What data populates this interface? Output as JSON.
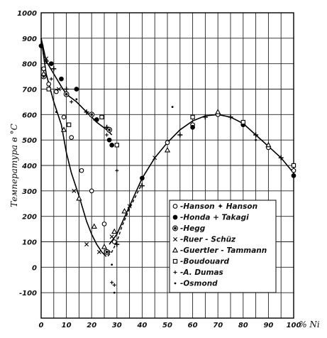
{
  "chart_data": {
    "type": "scatter",
    "title": "",
    "xlabel": "% Ni",
    "ylabel": "Температура в °C",
    "xlim": [
      0,
      100
    ],
    "ylim": [
      -200,
      1000
    ],
    "x_ticks": [
      0,
      10,
      20,
      30,
      40,
      50,
      60,
      70,
      80,
      90,
      100
    ],
    "x_tick_labels": [
      "0",
      "10",
      "20",
      "30",
      "40",
      "50",
      "60",
      "70",
      "80",
      "90",
      "100"
    ],
    "y_ticks": [
      -100,
      0,
      100,
      200,
      300,
      400,
      500,
      600,
      700,
      800,
      900,
      1000
    ],
    "y_tick_labels": [
      "-100",
      "0",
      "100",
      "200",
      "300",
      "400",
      "500",
      "600",
      "700",
      "800",
      "900",
      "1000"
    ],
    "grid": true,
    "legend_position": "center-right",
    "curves": [
      {
        "style": "solid",
        "x": [
          0,
          2,
          5,
          8,
          10,
          14,
          18,
          22,
          26,
          28
        ],
        "y": [
          900,
          810,
          760,
          710,
          680,
          650,
          610,
          570,
          540,
          520
        ]
      },
      {
        "style": "solid",
        "x": [
          0,
          2,
          5,
          8,
          10,
          12,
          15,
          18,
          20,
          22,
          24,
          25
        ],
        "y": [
          900,
          760,
          650,
          560,
          450,
          370,
          280,
          180,
          130,
          90,
          60,
          50
        ]
      },
      {
        "style": "dashed",
        "x": [
          25,
          26,
          28,
          30,
          32,
          35,
          38,
          40
        ],
        "y": [
          50,
          40,
          60,
          100,
          160,
          230,
          290,
          330
        ]
      },
      {
        "style": "solid",
        "x": [
          27,
          30,
          35,
          40,
          45,
          50,
          55,
          60,
          65,
          70,
          75,
          80,
          85,
          90,
          95,
          100
        ],
        "y": [
          90,
          130,
          240,
          350,
          430,
          490,
          540,
          575,
          595,
          600,
          590,
          565,
          520,
          475,
          430,
          370
        ]
      }
    ],
    "series": [
      {
        "name": "Hanson",
        "marker": "open-circle",
        "points": [
          [
            1,
            780
          ],
          [
            3,
            720
          ],
          [
            6,
            690
          ],
          [
            9,
            590
          ],
          [
            12,
            510
          ],
          [
            16,
            380
          ],
          [
            20,
            300
          ],
          [
            25,
            170
          ],
          [
            29,
            100
          ],
          [
            50,
            490
          ],
          [
            60,
            560
          ],
          [
            70,
            600
          ],
          [
            80,
            560
          ],
          [
            90,
            470
          ],
          [
            100,
            380
          ]
        ]
      },
      {
        "name": "Hanson",
        "marker": "plus",
        "points": [
          [
            2,
            810
          ],
          [
            5,
            780
          ],
          [
            10,
            700
          ],
          [
            18,
            610
          ],
          [
            26,
            550
          ],
          [
            30,
            90
          ],
          [
            40,
            320
          ],
          [
            55,
            520
          ],
          [
            65,
            590
          ],
          [
            75,
            590
          ],
          [
            85,
            520
          ],
          [
            95,
            430
          ]
        ]
      },
      {
        "name": "Honda + Takagi",
        "marker": "filled-circle",
        "points": [
          [
            0,
            870
          ],
          [
            4,
            800
          ],
          [
            8,
            740
          ],
          [
            14,
            700
          ],
          [
            22,
            580
          ],
          [
            27,
            500
          ],
          [
            28,
            480
          ],
          [
            40,
            350
          ],
          [
            60,
            550
          ],
          [
            80,
            560
          ],
          [
            100,
            360
          ]
        ]
      },
      {
        "name": "Hegg",
        "marker": "double-circle",
        "points": [
          [
            1,
            750
          ],
          [
            10,
            680
          ],
          [
            20,
            600
          ],
          [
            27,
            540
          ],
          [
            26,
            60
          ]
        ]
      },
      {
        "name": "Ruer + Schüz",
        "marker": "cross",
        "points": [
          [
            2,
            820
          ],
          [
            7,
            700
          ],
          [
            13,
            300
          ],
          [
            18,
            90
          ],
          [
            23,
            60
          ],
          [
            28,
            120
          ],
          [
            35,
            240
          ],
          [
            45,
            430
          ]
        ]
      },
      {
        "name": "Guertler + Tammann",
        "marker": "triangle",
        "points": [
          [
            1,
            760
          ],
          [
            9,
            540
          ],
          [
            15,
            270
          ],
          [
            21,
            160
          ],
          [
            25,
            80
          ],
          [
            29,
            140
          ],
          [
            33,
            220
          ],
          [
            50,
            460
          ],
          [
            70,
            610
          ],
          [
            90,
            480
          ]
        ]
      },
      {
        "name": "Boudouard",
        "marker": "open-square",
        "points": [
          [
            3,
            700
          ],
          [
            11,
            560
          ],
          [
            24,
            590
          ],
          [
            30,
            480
          ],
          [
            60,
            590
          ],
          [
            80,
            570
          ],
          [
            100,
            400
          ]
        ]
      },
      {
        "name": "A. Dumas",
        "marker": "plus-small",
        "points": [
          [
            4,
            740
          ],
          [
            12,
            650
          ],
          [
            26,
            520
          ],
          [
            27,
            60
          ],
          [
            28,
            -60
          ],
          [
            29,
            -70
          ],
          [
            30,
            380
          ]
        ]
      },
      {
        "name": "Osmond",
        "marker": "dot",
        "points": [
          [
            1,
            840
          ],
          [
            6,
            610
          ],
          [
            14,
            660
          ],
          [
            21,
            580
          ],
          [
            28,
            10
          ],
          [
            29,
            -100
          ],
          [
            52,
            630
          ],
          [
            85,
            500
          ]
        ]
      }
    ],
    "legend": [
      "-Hanson ✦ Hanson",
      "●-Honda + Takagi",
      "◎-Hegg",
      "×-Ruer - Schüz",
      "△-Guertler - Tammann",
      "□-Boudouard",
      "+-A. Dumas",
      "·-Osmond"
    ]
  }
}
